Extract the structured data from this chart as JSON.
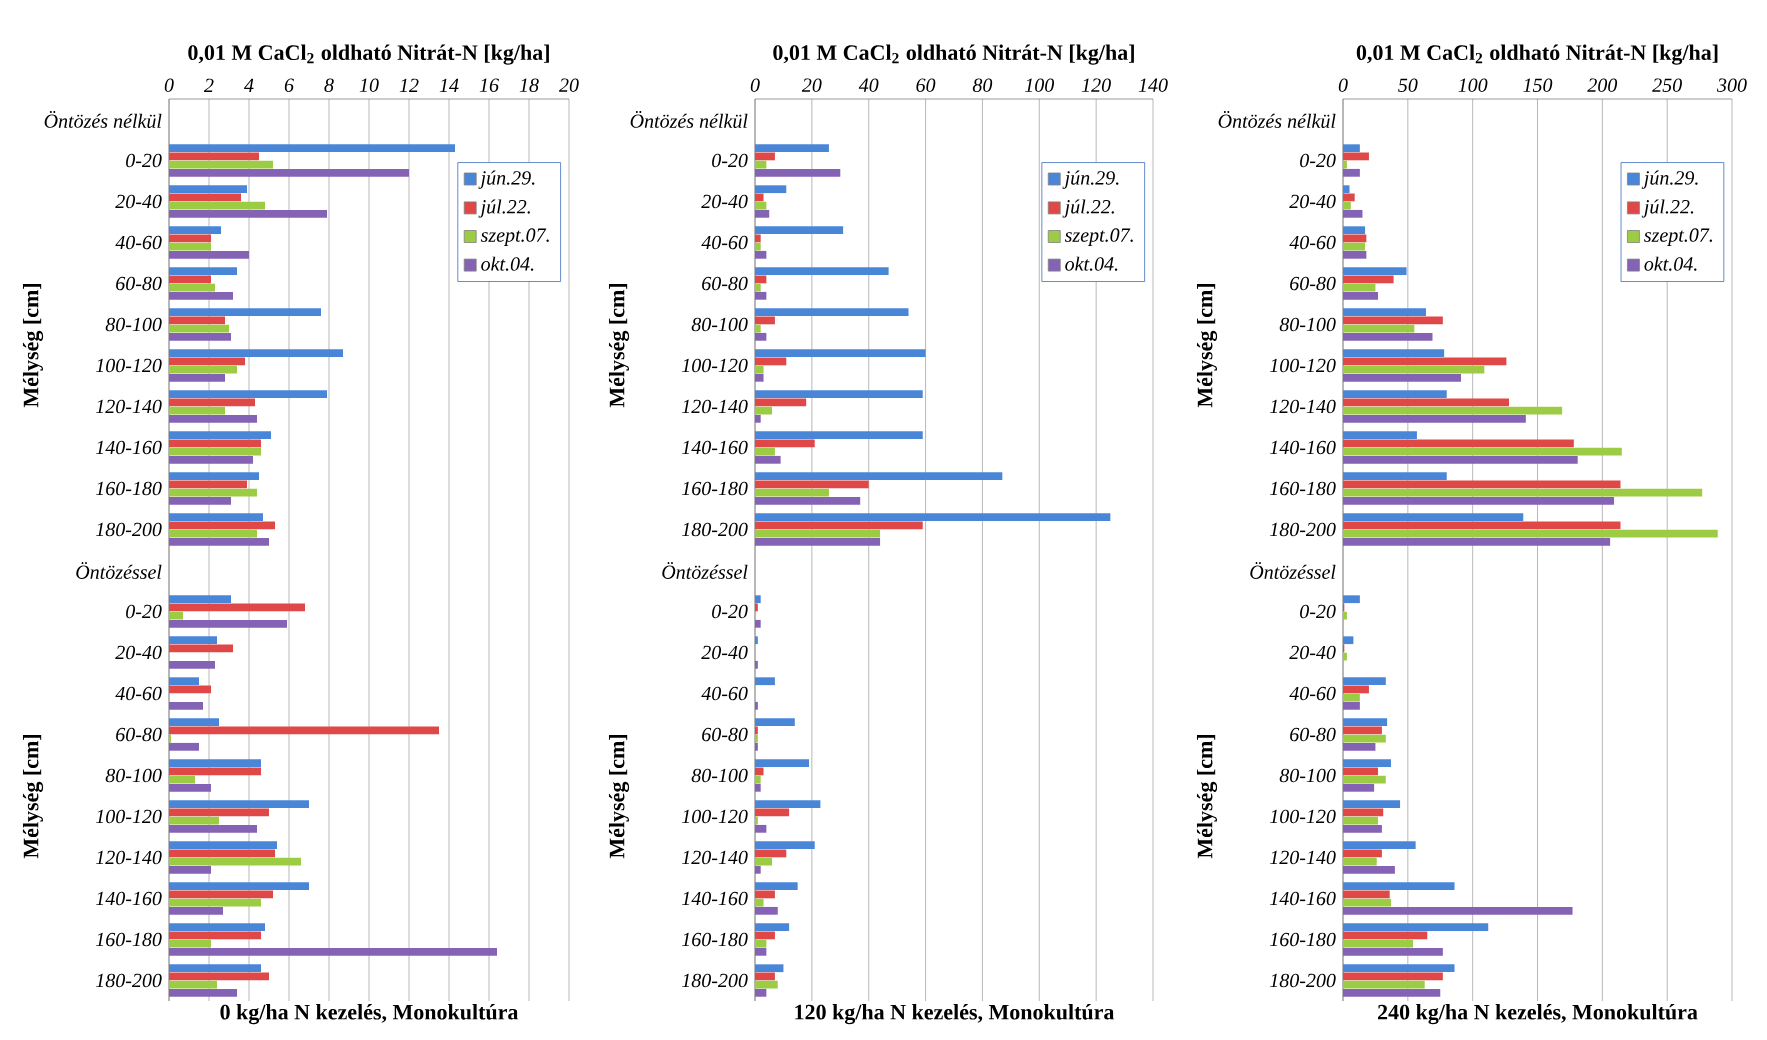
{
  "chart_data": [
    {
      "type": "bar",
      "orientation": "horizontal",
      "title": "0 kg/ha N kezelés, Monokultúra",
      "xlabel": "0,01 M CaCl$_{2}$ oldható Nitrát-N [kg/ha]",
      "ylabel": "Mélység [cm]",
      "categories": [
        "Öntözés nélkül",
        "0-20",
        "20-40",
        "40-60",
        "60-80",
        "80-100",
        "100-120",
        "120-140",
        "140-160",
        "160-180",
        "180-200",
        "Öntözéssel",
        "0-20",
        "20-40",
        "40-60",
        "60-80",
        "80-100",
        "100-120",
        "120-140",
        "140-160",
        "160-180",
        "180-200"
      ],
      "series": [
        {
          "name": "jún.29.",
          "color": "#4a86d8",
          "values": [
            null,
            14.3,
            3.9,
            2.6,
            3.4,
            7.6,
            8.7,
            7.9,
            5.1,
            4.5,
            4.7,
            null,
            3.1,
            2.4,
            1.5,
            2.5,
            4.6,
            7.0,
            5.4,
            7.0,
            4.8,
            4.6
          ]
        },
        {
          "name": "júl.22.",
          "color": "#e04848",
          "values": [
            null,
            4.5,
            3.6,
            2.1,
            2.1,
            2.8,
            3.8,
            4.3,
            4.6,
            3.9,
            5.3,
            null,
            6.8,
            3.2,
            2.1,
            13.5,
            4.6,
            5.0,
            5.3,
            5.2,
            4.6,
            5.0
          ]
        },
        {
          "name": "szept.07.",
          "color": "#9ccc44",
          "values": [
            null,
            5.2,
            4.8,
            2.1,
            2.3,
            3.0,
            3.4,
            2.8,
            4.6,
            4.4,
            4.4,
            null,
            0.7,
            0,
            0,
            0.1,
            1.3,
            2.5,
            6.6,
            4.6,
            2.1,
            2.4
          ]
        },
        {
          "name": "okt.04.",
          "color": "#8462b4",
          "values": [
            null,
            12.0,
            7.9,
            4.0,
            3.2,
            3.1,
            2.8,
            4.4,
            4.2,
            3.1,
            5.0,
            null,
            5.9,
            2.3,
            1.7,
            1.5,
            2.1,
            4.4,
            2.1,
            2.7,
            16.4,
            3.4
          ]
        }
      ],
      "xlim": [
        0,
        20
      ],
      "xticks": [
        0,
        2,
        4,
        6,
        8,
        10,
        12,
        14,
        16,
        18,
        20
      ],
      "grid": "x",
      "legend": "top right"
    },
    {
      "type": "bar",
      "orientation": "horizontal",
      "title": "120 kg/ha N kezelés, Monokultúra",
      "xlabel": "0,01 M CaCl$_{2}$ oldható Nitrát-N [kg/ha]",
      "ylabel": "Mélység [cm]",
      "categories": [
        "Öntözés nélkül",
        "0-20",
        "20-40",
        "40-60",
        "60-80",
        "80-100",
        "100-120",
        "120-140",
        "140-160",
        "160-180",
        "180-200",
        "Öntözéssel",
        "0-20",
        "20-40",
        "40-60",
        "60-80",
        "80-100",
        "100-120",
        "120-140",
        "140-160",
        "160-180",
        "180-200"
      ],
      "series": [
        {
          "name": "jún.29.",
          "color": "#4a86d8",
          "values": [
            null,
            26,
            11,
            31,
            47,
            54,
            60,
            59,
            59,
            87,
            125,
            null,
            2,
            1,
            7,
            14,
            19,
            23,
            21,
            15,
            12,
            10
          ]
        },
        {
          "name": "júl.22.",
          "color": "#e04848",
          "values": [
            null,
            7,
            3,
            2,
            4,
            7,
            11,
            18,
            21,
            40,
            59,
            null,
            1,
            0,
            0,
            1,
            3,
            12,
            11,
            7,
            7,
            7
          ]
        },
        {
          "name": "szept.07.",
          "color": "#9ccc44",
          "values": [
            null,
            4,
            4,
            2,
            2,
            2,
            3,
            6,
            7,
            26,
            44,
            null,
            0,
            0,
            0,
            1,
            2,
            1,
            6,
            3,
            4,
            8
          ]
        },
        {
          "name": "okt.04.",
          "color": "#8462b4",
          "values": [
            null,
            30,
            5,
            4,
            4,
            4,
            3,
            2,
            9,
            37,
            44,
            null,
            2,
            1,
            1,
            1,
            2,
            4,
            2,
            8,
            4,
            4
          ]
        }
      ],
      "xlim": [
        0,
        140
      ],
      "xticks": [
        0,
        20,
        40,
        60,
        80,
        100,
        120,
        140
      ],
      "grid": "x",
      "legend": "top right"
    },
    {
      "type": "bar",
      "orientation": "horizontal",
      "title": "240 kg/ha N kezelés, Monokultúra",
      "xlabel": "0,01 M CaCl$_{2}$ oldható Nitrát-N [kg/ha]",
      "ylabel": "Mélység [cm]",
      "categories": [
        "Öntözés nélkül",
        "0-20",
        "20-40",
        "40-60",
        "60-80",
        "80-100",
        "100-120",
        "120-140",
        "140-160",
        "160-180",
        "180-200",
        "Öntözéssel",
        "0-20",
        "20-40",
        "40-60",
        "60-80",
        "80-100",
        "100-120",
        "120-140",
        "140-160",
        "160-180",
        "180-200"
      ],
      "series": [
        {
          "name": "jún.29.",
          "color": "#4a86d8",
          "values": [
            null,
            13,
            5,
            17,
            49,
            64,
            78,
            80,
            57,
            80,
            139,
            null,
            13,
            8,
            33,
            34,
            37,
            44,
            56,
            86,
            112,
            86
          ]
        },
        {
          "name": "júl.22.",
          "color": "#e04848",
          "values": [
            null,
            20,
            9,
            18,
            39,
            77,
            126,
            128,
            178,
            214,
            214,
            null,
            1,
            1,
            20,
            30,
            27,
            31,
            30,
            36,
            65,
            77
          ]
        },
        {
          "name": "szept.07.",
          "color": "#9ccc44",
          "values": [
            null,
            3,
            6,
            17,
            25,
            55,
            109,
            169,
            215,
            277,
            289,
            null,
            3,
            3,
            13,
            33,
            33,
            27,
            26,
            37,
            54,
            63
          ]
        },
        {
          "name": "okt.04.",
          "color": "#8462b4",
          "values": [
            null,
            13,
            15,
            18,
            27,
            69,
            91,
            141,
            181,
            209,
            206,
            null,
            null,
            null,
            13,
            25,
            24,
            30,
            40,
            177,
            77,
            75
          ]
        }
      ],
      "xlim": [
        0,
        300
      ],
      "xticks": [
        0,
        50,
        100,
        150,
        200,
        250,
        300
      ],
      "grid": "x",
      "legend": "top right"
    }
  ]
}
